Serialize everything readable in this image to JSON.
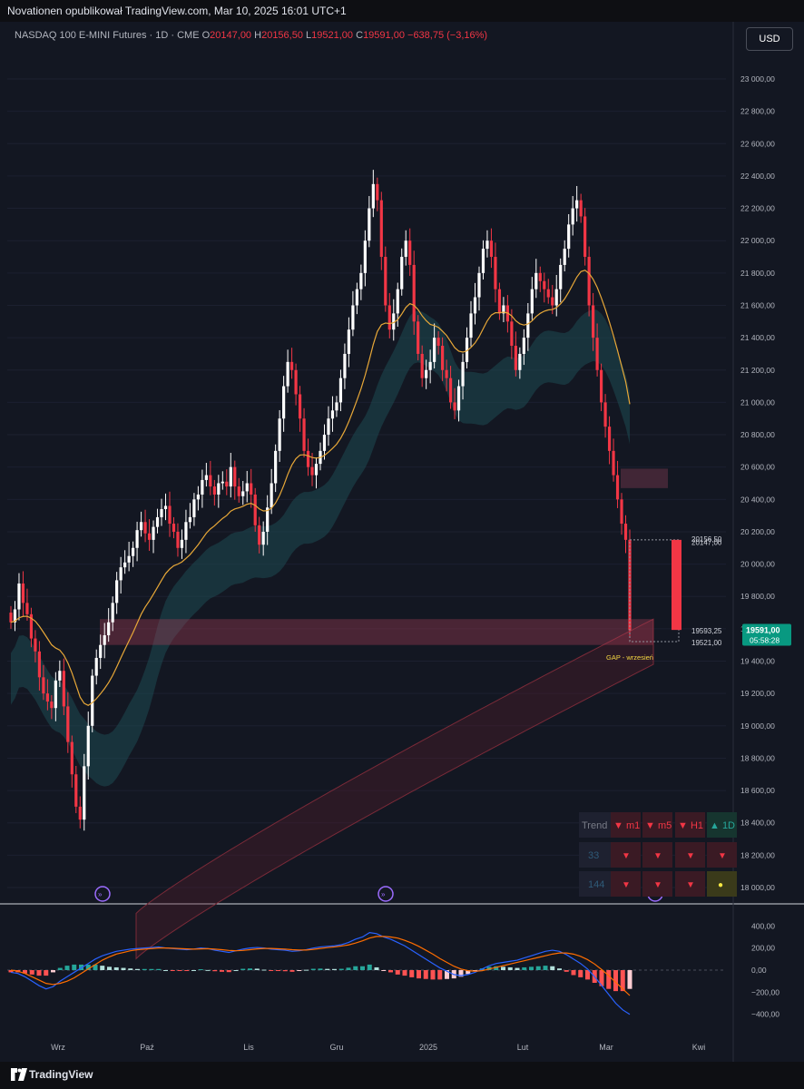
{
  "header": {
    "publisher": "Novationen opublikował TradingView.com, Mar 10, 2025 16:01 UTC+1",
    "symbol": "NASDAQ 100 E-MINI Futures · 1D · CME",
    "o_label": "O",
    "o_value": "20147,00",
    "h_label": "H",
    "h_value": "20156,50",
    "l_label": "L",
    "l_value": "19521,00",
    "c_label": "C",
    "c_value": "19591,00",
    "change": "−638,75 (−3,16%)",
    "currency": "USD"
  },
  "footer": {
    "brand": "TradingView"
  },
  "colors": {
    "bg": "#131722",
    "up": "#ffffff",
    "down": "#f23645",
    "ema_fast": "#e8a838",
    "band_teal": "#1e4b52",
    "band_red": "#5a1e2b",
    "macd": "#2962ff",
    "signal": "#ff6d00"
  },
  "chart_data": [
    {
      "type": "candlestick",
      "title": "",
      "x_tick_labels": [
        "Wrz",
        "Paź",
        "Lis",
        "Gru",
        "2025",
        "Lut",
        "Mar",
        "Kwi"
      ],
      "y_tick_labels": [
        "23 000,00",
        "22 800,00",
        "22 600,00",
        "22 400,00",
        "22 200,00",
        "22 000,00",
        "21 800,00",
        "21 600,00",
        "21 400,00",
        "21 200,00",
        "21 000,00",
        "20 800,00",
        "20 600,00",
        "20 400,00",
        "20 200,00",
        "20 000,00",
        "19 800,00",
        "19 600,00",
        "19 400,00",
        "19 200,00",
        "19 000,00",
        "18 800,00",
        "18 600,00",
        "18 400,00",
        "18 200,00",
        "18 000,00"
      ],
      "ylim": [
        17900,
        23100
      ],
      "last_price": {
        "value": "19591,00",
        "countdown": "05:58:28"
      },
      "price_levels": [
        {
          "label": "20156,50"
        },
        {
          "label": "20147,00"
        },
        {
          "label": "19593,25"
        },
        {
          "label": "19521,00"
        }
      ],
      "annotations": [
        "GAP - wrzesień"
      ],
      "gap_zone": [
        19500,
        19660
      ],
      "supply_zone": [
        20470,
        20590
      ],
      "candles_close": [
        19640,
        19720,
        19880,
        19760,
        19690,
        19540,
        19460,
        19300,
        19200,
        19150,
        19110,
        19280,
        19340,
        19120,
        18900,
        18700,
        18500,
        18420,
        18750,
        19000,
        19310,
        19420,
        19500,
        19560,
        19640,
        19760,
        19900,
        19980,
        20010,
        20050,
        20100,
        20210,
        20260,
        20190,
        20150,
        20230,
        20290,
        20340,
        20360,
        20250,
        20200,
        20100,
        20150,
        20260,
        20290,
        20400,
        20430,
        20520,
        20550,
        20480,
        20430,
        20500,
        20510,
        20480,
        20600,
        20480,
        20420,
        20450,
        20500,
        20430,
        20240,
        20120,
        20200,
        20350,
        20500,
        20700,
        20900,
        21100,
        21250,
        21200,
        21050,
        20900,
        20700,
        20600,
        20550,
        20620,
        20700,
        20800,
        20900,
        20950,
        21000,
        21150,
        21300,
        21450,
        21600,
        21700,
        21800,
        22000,
        22200,
        22350,
        22250,
        21900,
        21600,
        21450,
        21550,
        21700,
        21900,
        22000,
        21850,
        21500,
        21300,
        21150,
        21200,
        21250,
        21400,
        21350,
        21200,
        21150,
        21000,
        20950,
        21100,
        21250,
        21400,
        21550,
        21650,
        21800,
        21950,
        22000,
        21900,
        21700,
        21550,
        21600,
        21500,
        21350,
        21200,
        21300,
        21400,
        21550,
        21700,
        21800,
        21750,
        21700,
        21650,
        21600,
        21700,
        21850,
        21950,
        22100,
        22200,
        22250,
        22150,
        21900,
        21600,
        21400,
        21200,
        21000,
        20850,
        20700,
        20550,
        20400,
        20250,
        20150,
        19591
      ],
      "macd_line": [
        -20,
        -30,
        -60,
        -100,
        -140,
        -170,
        -150,
        -100,
        -60,
        -20,
        20,
        60,
        100,
        130,
        150,
        170,
        180,
        190,
        195,
        200,
        205,
        210,
        200,
        195,
        190,
        185,
        190,
        200,
        195,
        180,
        170,
        160,
        175,
        190,
        200,
        205,
        200,
        190,
        185,
        180,
        170,
        175,
        185,
        200,
        210,
        215,
        220,
        230,
        250,
        280,
        300,
        340,
        330,
        300,
        280,
        250,
        220,
        180,
        140,
        100,
        60,
        20,
        -10,
        -40,
        -50,
        -40,
        -20,
        10,
        40,
        60,
        70,
        80,
        90,
        110,
        130,
        150,
        170,
        180,
        170,
        140,
        100,
        60,
        10,
        -60,
        -140,
        -220,
        -300,
        -360,
        -400
      ],
      "signal_line": [
        0,
        -10,
        -30,
        -60,
        -90,
        -120,
        -130,
        -120,
        -100,
        -70,
        -30,
        10,
        50,
        90,
        120,
        145,
        160,
        175,
        185,
        190,
        195,
        200,
        200,
        198,
        195,
        192,
        190,
        192,
        194,
        190,
        185,
        178,
        175,
        178,
        185,
        192,
        196,
        196,
        193,
        190,
        185,
        182,
        182,
        188,
        196,
        204,
        210,
        218,
        228,
        245,
        265,
        290,
        305,
        305,
        300,
        290,
        270,
        245,
        215,
        180,
        145,
        105,
        70,
        35,
        10,
        -5,
        -10,
        -5,
        10,
        25,
        40,
        55,
        70,
        85,
        100,
        115,
        130,
        145,
        155,
        155,
        145,
        125,
        95,
        55,
        5,
        -50,
        -110,
        -170,
        -230
      ],
      "histogram": [
        -20,
        -20,
        -30,
        -40,
        -50,
        -50,
        -20,
        20,
        40,
        50,
        50,
        50,
        50,
        40,
        30,
        25,
        20,
        15,
        10,
        10,
        10,
        10,
        0,
        -3,
        -5,
        -7,
        0,
        8,
        1,
        -10,
        -15,
        -18,
        0,
        12,
        15,
        13,
        4,
        -6,
        -8,
        -10,
        -15,
        -7,
        3,
        12,
        14,
        11,
        10,
        12,
        22,
        35,
        35,
        50,
        25,
        -5,
        -20,
        -40,
        -50,
        -65,
        -75,
        -80,
        -85,
        -85,
        -80,
        -75,
        -60,
        -35,
        -10,
        15,
        30,
        35,
        30,
        25,
        20,
        25,
        30,
        35,
        40,
        35,
        15,
        -15,
        -45,
        -65,
        -85,
        -115,
        -145,
        -170,
        -190,
        -190,
        -170
      ],
      "macd_yticks": [
        "400,00",
        "200,00",
        "0,00",
        "−200,00",
        "−400,00"
      ],
      "macd_ylim": [
        -460,
        460
      ]
    }
  ],
  "trend_table": {
    "header": [
      "Trend",
      "▼ m1",
      "▼ m5",
      "▼ H1",
      "▲ 1D"
    ],
    "rows": [
      {
        "label": "33",
        "cells": [
          "▼",
          "▼",
          "▼",
          "▼"
        ]
      },
      {
        "label": "144",
        "cells": [
          "▼",
          "▼",
          "▼",
          "●"
        ]
      }
    ]
  }
}
